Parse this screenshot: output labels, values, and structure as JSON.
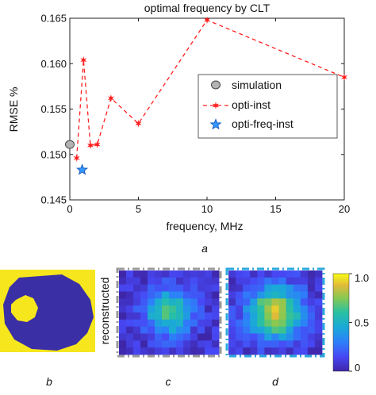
{
  "chart_data": [
    {
      "type": "line",
      "title": "optimal frequency by CLT",
      "xlabel": "frequency, MHz",
      "ylabel": "RMSE %",
      "xlim": [
        0,
        20
      ],
      "ylim": [
        0.145,
        0.165
      ],
      "xticks": [
        "0",
        "5",
        "10",
        "15",
        "20"
      ],
      "yticks": [
        "0.145",
        "0.150",
        "0.155",
        "0.160",
        "0.165"
      ],
      "xtick_values": [
        0,
        5,
        10,
        15,
        20
      ],
      "ytick_values": [
        0.145,
        0.15,
        0.155,
        0.16,
        0.165
      ],
      "grid": false,
      "legend_position": "right",
      "series": [
        {
          "name": "simulation",
          "marker": "circle",
          "color": "#b3b3b3",
          "x": [
            0
          ],
          "y": [
            0.1511
          ]
        },
        {
          "name": "opti-inst",
          "marker": "star",
          "line": "dashed",
          "color": "#ff2020",
          "x": [
            0.5,
            1,
            1.5,
            2,
            3,
            5,
            10,
            20
          ],
          "y": [
            0.1496,
            0.1604,
            0.151,
            0.1511,
            0.1562,
            0.1534,
            0.1648,
            0.1585
          ]
        },
        {
          "name": "opti-freq-inst",
          "marker": "pentagram",
          "color": "#3399ff",
          "x": [
            0.9
          ],
          "y": [
            0.1483
          ]
        }
      ],
      "caption": "a"
    },
    {
      "type": "heatmap",
      "caption": "b",
      "colormap": "parula"
    },
    {
      "type": "heatmap",
      "ylabel": "reconstructed",
      "caption": "c",
      "border_color": "#999999",
      "colormap": "parula"
    },
    {
      "type": "heatmap",
      "caption": "d",
      "border_color": "#2aa8dd",
      "colormap": "parula",
      "colorbar": {
        "min": 0,
        "max": 1,
        "ticks": [
          "0",
          "0.5",
          "1.0"
        ]
      }
    }
  ]
}
